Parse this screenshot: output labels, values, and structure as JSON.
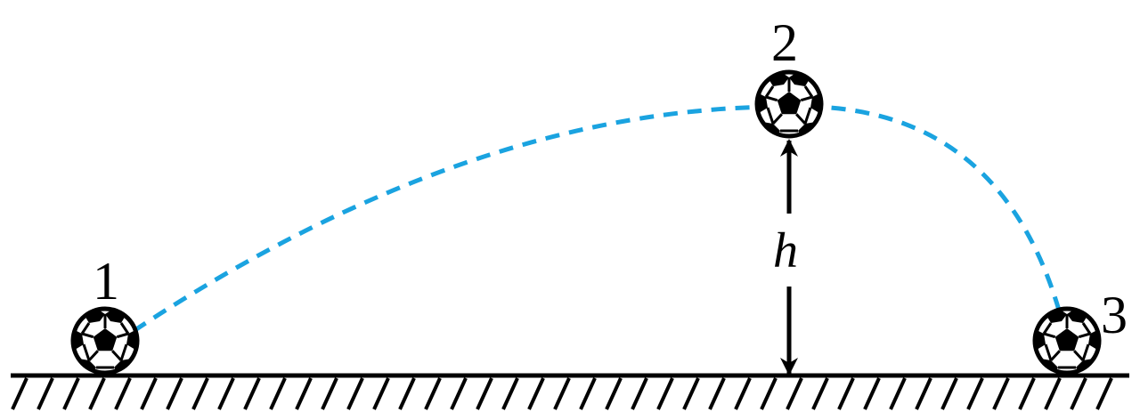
{
  "labels": {
    "position_1": "1",
    "position_2": "2",
    "position_3": "3",
    "height": "h"
  },
  "colors": {
    "trajectory": "#1aa3e0",
    "ink": "#000000",
    "background": "#ffffff"
  },
  "icons": {
    "ball": "soccer-ball-icon",
    "arrow": "double-headed-arrow"
  }
}
